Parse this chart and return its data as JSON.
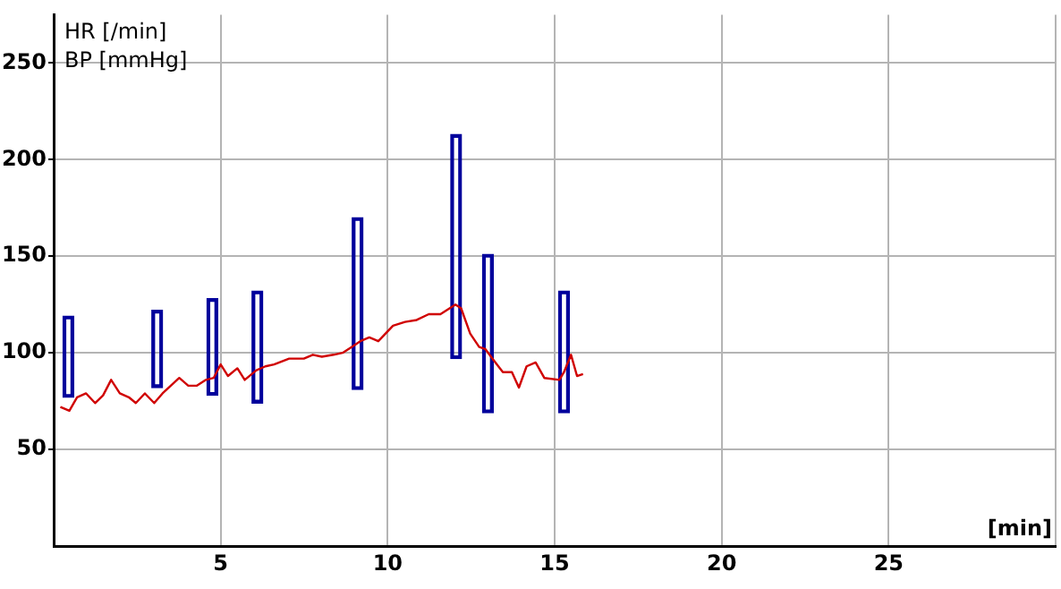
{
  "chart_data": {
    "type": "line",
    "xlabel": "[min]",
    "annotations": [
      "HR [/min]",
      "BP [mmHg]"
    ],
    "xlim": [
      0,
      30
    ],
    "xticks": [
      5,
      10,
      15,
      20,
      25,
      {
        "value": 30,
        "label": null
      }
    ],
    "ylim": [
      0,
      275
    ],
    "yticks": [
      50,
      100,
      150,
      200,
      250
    ],
    "grid": true,
    "legend": false,
    "series": [
      {
        "color": "#d00000",
        "marker": "none",
        "x": [
          0.2,
          0.47,
          0.7,
          0.97,
          1.24,
          1.48,
          1.72,
          1.98,
          2.25,
          2.46,
          2.73,
          3.01,
          3.26,
          3.76,
          4.03,
          4.29,
          4.56,
          4.79,
          5.0,
          5.22,
          5.5,
          5.72,
          6.07,
          6.34,
          6.6,
          7.05,
          7.49,
          7.76,
          8.03,
          8.38,
          8.65,
          8.92,
          9.18,
          9.45,
          9.72,
          10.16,
          10.52,
          10.87,
          11.23,
          11.58,
          12.03,
          12.2,
          12.47,
          12.74,
          12.92,
          13.18,
          13.45,
          13.72,
          13.93,
          14.16,
          14.43,
          14.69,
          15.14,
          15.28,
          15.49,
          15.67,
          15.85
        ],
        "values": [
          72,
          70,
          77,
          79,
          74,
          78,
          86,
          79,
          77,
          74,
          79,
          74,
          79,
          87,
          83,
          83,
          86,
          87,
          94,
          88,
          92,
          86,
          91,
          93,
          94,
          97,
          97,
          99,
          98,
          99,
          100,
          103,
          106,
          108,
          106,
          114,
          116,
          117,
          120,
          120,
          125,
          123,
          110,
          103,
          102,
          96,
          90,
          90,
          82,
          93,
          95,
          87,
          86,
          90,
          99,
          88,
          89
        ]
      },
      {
        "type": "bar",
        "color": "#00009c",
        "x": [
          0.44,
          3.1,
          4.75,
          6.1,
          9.1,
          12.05,
          13.0,
          15.28
        ],
        "base": [
          77,
          82,
          78,
          74,
          81,
          97,
          69,
          69
        ],
        "values": [
          42,
          40,
          50,
          58,
          89,
          116,
          82,
          63
        ]
      }
    ]
  }
}
